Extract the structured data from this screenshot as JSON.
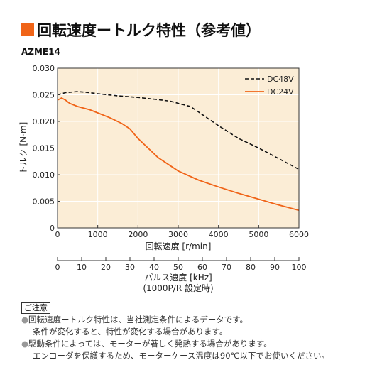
{
  "header": {
    "title": "回転速度ートルク特性（参考値）",
    "accent": "#f06418"
  },
  "model": "AZME14",
  "chart_data": {
    "type": "line",
    "title": "回転速度ートルク特性（参考値）",
    "xlabel": "回転速度 [r/min]",
    "ylabel": "トルク [N·m]",
    "xlim": [
      0,
      6000
    ],
    "ylim": [
      0,
      0.03
    ],
    "x_ticks": [
      "0",
      "1000",
      "2000",
      "3000",
      "4000",
      "5000",
      "6000"
    ],
    "y_ticks": [
      "0",
      "0.005",
      "0.010",
      "0.015",
      "0.020",
      "0.025",
      "0.030"
    ],
    "grid": true,
    "legend": "top-right",
    "series": [
      {
        "name": "DC48V",
        "style": "dashed",
        "color": "#111111",
        "x": [
          0,
          200,
          500,
          800,
          1000,
          1500,
          2000,
          2500,
          2800,
          3000,
          3300,
          3500,
          4000,
          4500,
          5000,
          5500,
          6000
        ],
        "y": [
          0.025,
          0.0254,
          0.0256,
          0.0254,
          0.0252,
          0.0248,
          0.0245,
          0.0241,
          0.0238,
          0.0234,
          0.0228,
          0.0218,
          0.0192,
          0.0168,
          0.015,
          0.013,
          0.011
        ]
      },
      {
        "name": "DC24V",
        "style": "solid",
        "color": "#f06418",
        "x": [
          0,
          100,
          200,
          300,
          500,
          800,
          1000,
          1300,
          1600,
          1800,
          2000,
          2500,
          3000,
          3500,
          4000,
          4500,
          5000,
          5500,
          6000
        ],
        "y": [
          0.024,
          0.0244,
          0.024,
          0.0234,
          0.0228,
          0.0222,
          0.0216,
          0.0207,
          0.0196,
          0.0186,
          0.0168,
          0.0132,
          0.0107,
          0.009,
          0.0077,
          0.0065,
          0.0054,
          0.0043,
          0.0033
        ]
      }
    ],
    "secondary_axis": {
      "label_line1": "パルス速度 [kHz]",
      "label_line2": "(1000P/R 設定時)",
      "range": [
        0,
        100
      ],
      "ticks": [
        "0",
        "10",
        "20",
        "30",
        "40",
        "50",
        "60",
        "70",
        "80",
        "90",
        "100"
      ]
    },
    "plot_bg": "#fbedd6"
  },
  "notice": {
    "label": "ご注意",
    "lines": [
      {
        "bullet": "●",
        "text": "回転速度ートルク特性は、当社測定条件によるデータです。"
      },
      {
        "bullet": "",
        "text": "条件が変化すると、特性が変化する場合があります。"
      },
      {
        "bullet": "●",
        "text": "駆動条件によっては、モーターが著しく発熱する場合があります。"
      },
      {
        "bullet": "",
        "text": "エンコーダを保護するため、モーターケース温度は90℃以下でお使いください。"
      }
    ]
  }
}
